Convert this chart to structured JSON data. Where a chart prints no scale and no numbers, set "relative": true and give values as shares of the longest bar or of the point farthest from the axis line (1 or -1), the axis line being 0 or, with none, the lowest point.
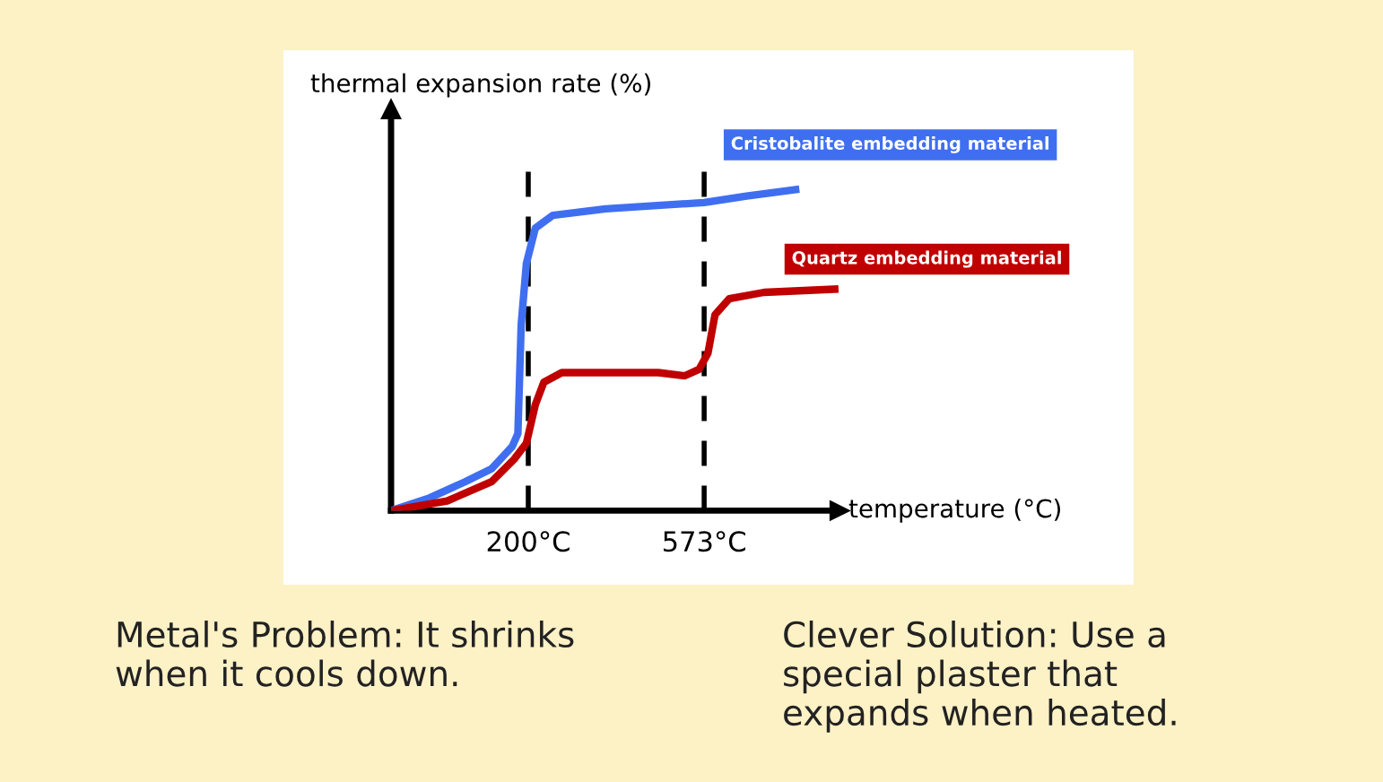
{
  "chart_data": {
    "type": "line",
    "relative": true,
    "ylabel": "thermal expansion rate (%)",
    "xlabel": "temperature (°C)",
    "xlim": [
      -91,
      860
    ],
    "xticks": [
      {
        "value": 200,
        "label": "200°C"
      },
      {
        "value": 573,
        "label": "573°C"
      }
    ],
    "ref_lines": [
      {
        "axis": "x",
        "value": 200,
        "color": "#000000",
        "line_style": "dashed"
      },
      {
        "axis": "x",
        "value": 573,
        "color": "#000000",
        "line_style": "dashed"
      }
    ],
    "series": [
      {
        "name": "Cristobalite embedding material",
        "color": "#3f6ff0",
        "x": [
          -91,
          -9,
          66,
          122,
          166,
          178,
          185,
          196,
          215,
          252,
          364,
          573,
          663,
          767
        ],
        "values": [
          0,
          0.04,
          0.09,
          0.13,
          0.2,
          0.24,
          0.58,
          0.77,
          0.88,
          0.92,
          0.94,
          0.96,
          0.98,
          1
        ]
      },
      {
        "name": "Quartz embedding material",
        "color": "#c00000",
        "x": [
          -91,
          28,
          122,
          170,
          196,
          215,
          233,
          271,
          364,
          476,
          532,
          562,
          581,
          596,
          626,
          700,
          850
        ],
        "values": [
          0,
          0.03,
          0.09,
          0.16,
          0.21,
          0.33,
          0.4,
          0.43,
          0.43,
          0.43,
          0.42,
          0.44,
          0.49,
          0.61,
          0.66,
          0.68,
          0.69
        ]
      }
    ],
    "grid": false,
    "legend": false,
    "annotations": [
      "Metal's Problem: It shrinks\nwhen it cools down.",
      "Clever Solution: Use a\nspecial plaster that\nexpands when heated."
    ]
  }
}
